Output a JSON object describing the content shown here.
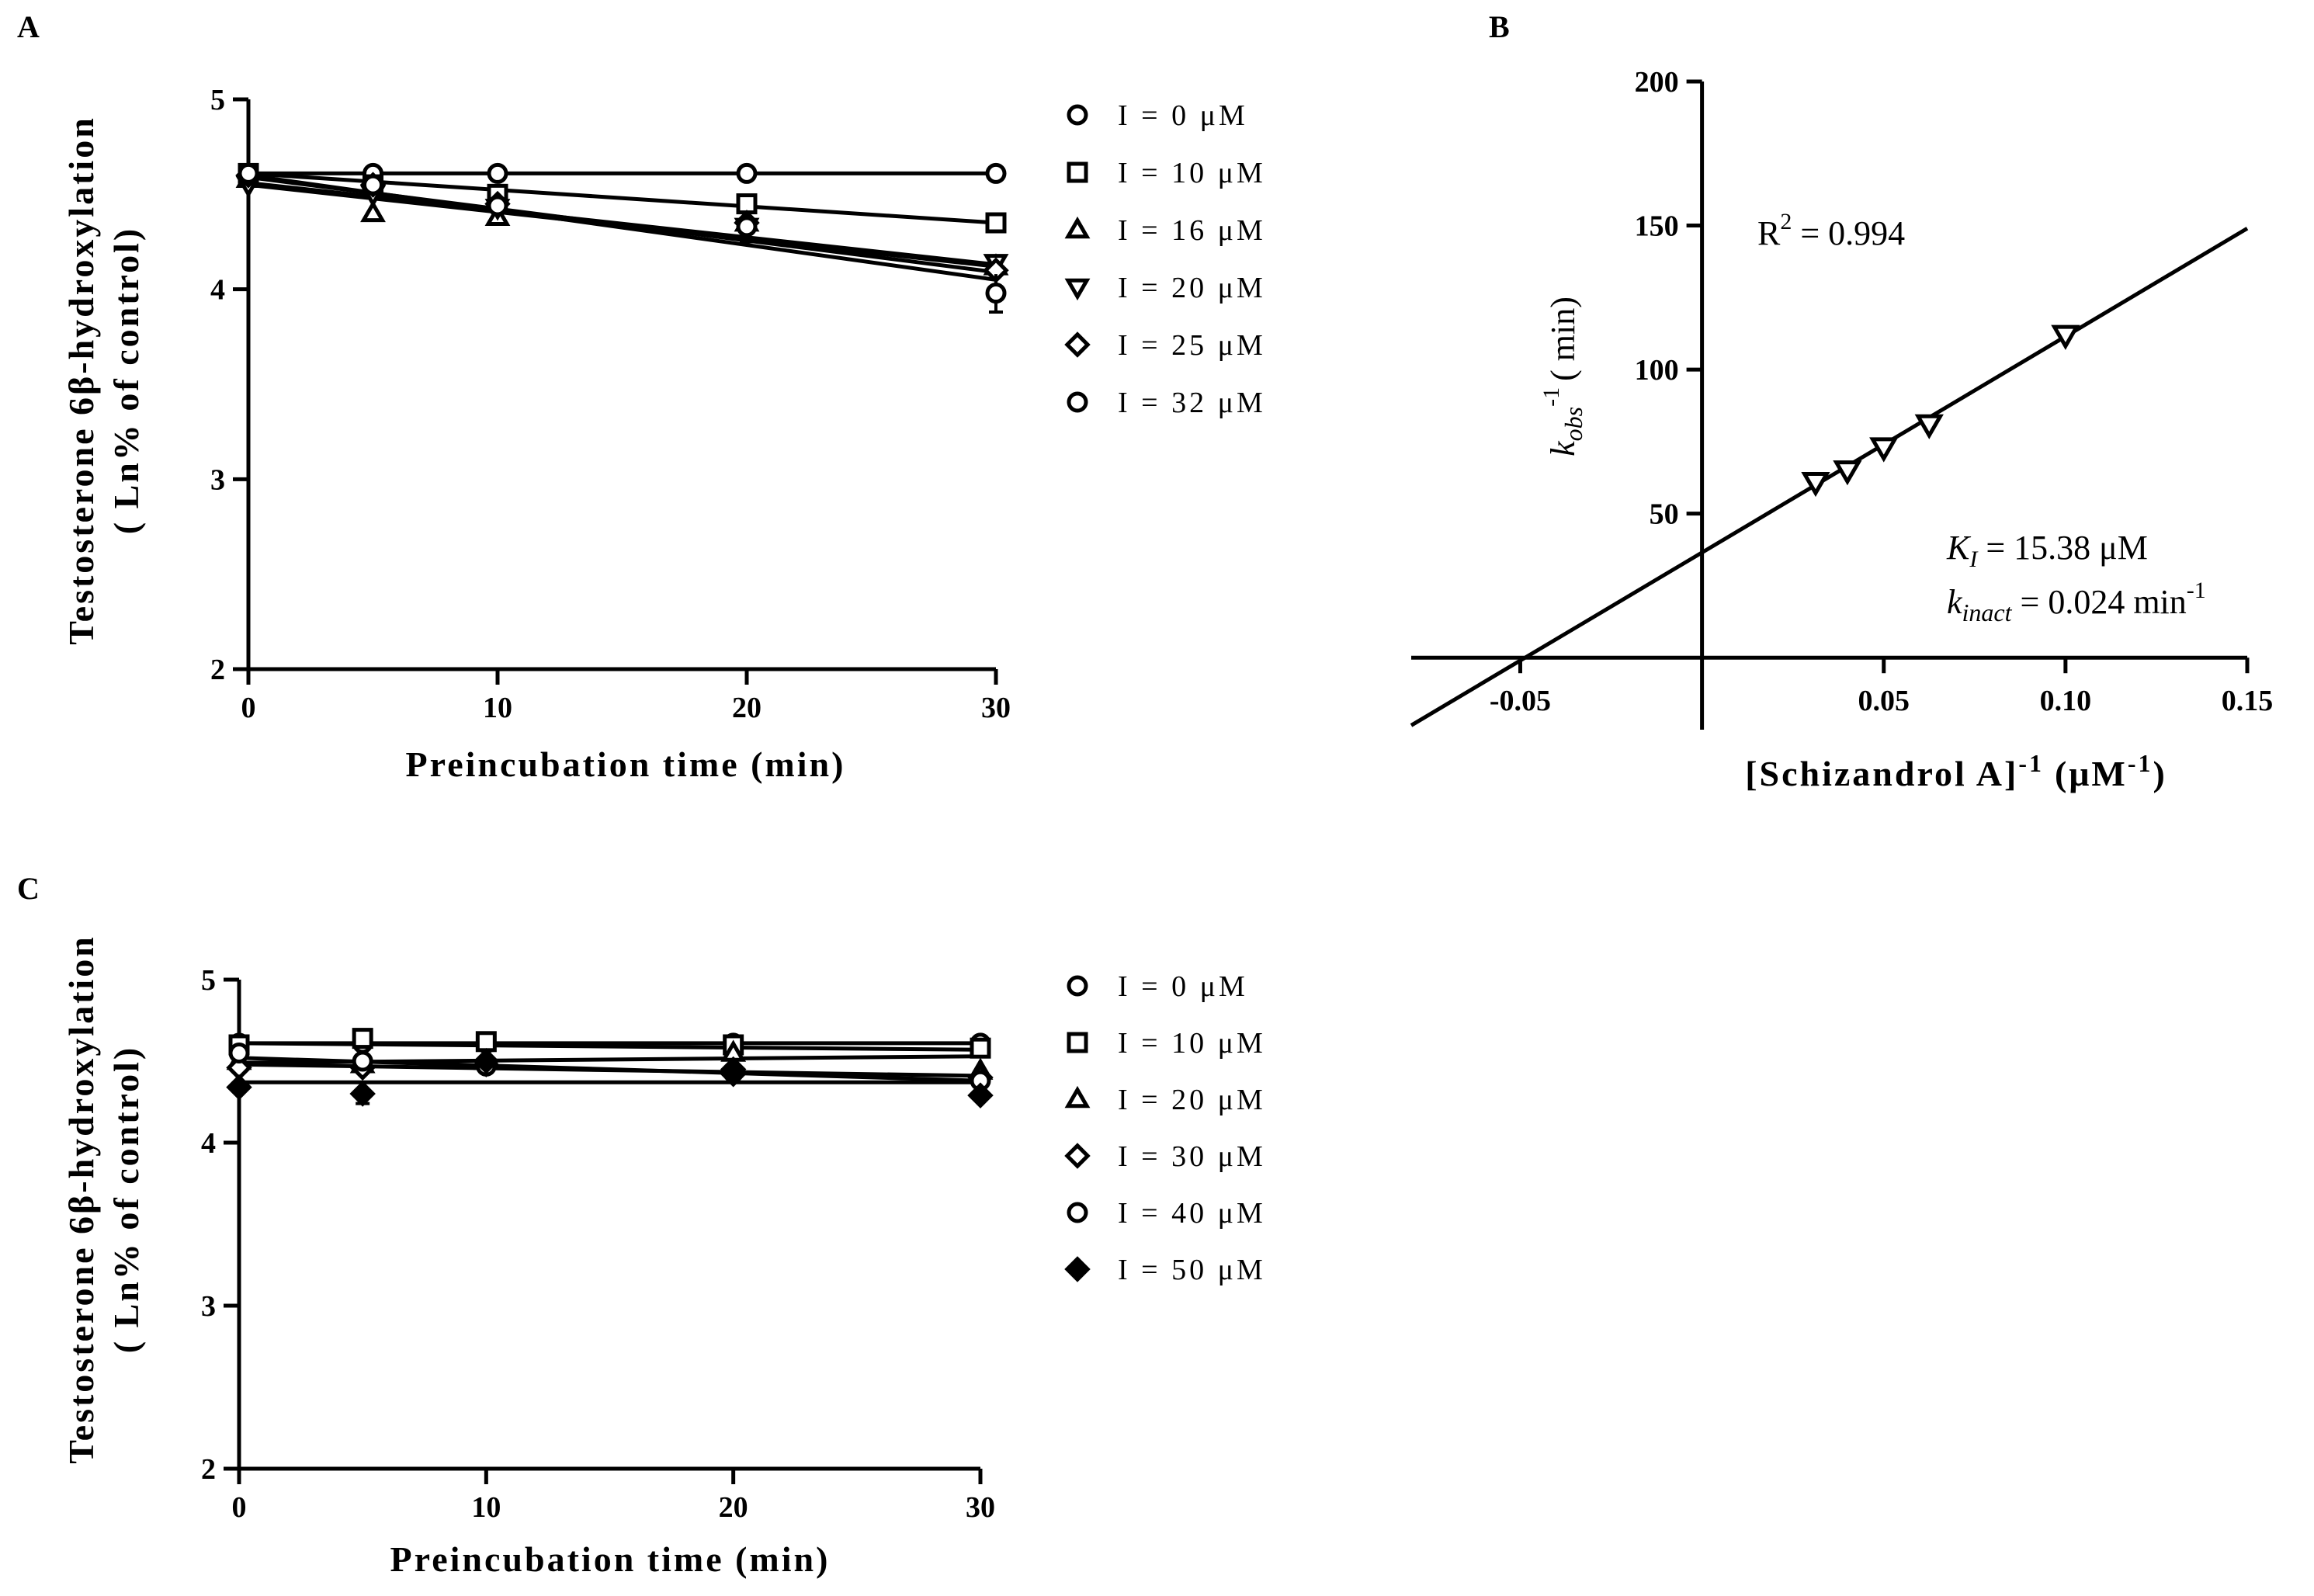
{
  "figure": {
    "panel_labels": [
      "A",
      "B",
      "C"
    ]
  },
  "chart_data": [
    {
      "panel": "A",
      "type": "line",
      "title": "",
      "xlabel": "Preincubation time (min)",
      "ylabel_line1": "Testosterone 6β-hydroxylation",
      "ylabel_line2": "( Ln% of control)",
      "xlim": [
        0,
        30
      ],
      "ylim": [
        2,
        5
      ],
      "xticks": [
        "0",
        "10",
        "20",
        "30"
      ],
      "yticks": [
        "2",
        "3",
        "4",
        "5"
      ],
      "x": [
        0,
        5,
        10,
        20,
        30
      ],
      "series": [
        {
          "name": "I = 0 μM",
          "marker": "circle-open",
          "values": [
            4.61,
            4.61,
            4.61,
            4.61,
            4.61
          ],
          "fit": [
            4.61,
            4.61
          ]
        },
        {
          "name": "I = 10 μM",
          "marker": "square-open",
          "values": [
            4.61,
            4.55,
            4.5,
            4.45,
            4.35
          ],
          "fit": [
            4.61,
            4.35
          ]
        },
        {
          "name": "I = 16 μM",
          "marker": "triangle-open",
          "values": [
            4.58,
            4.4,
            4.38,
            4.35,
            4.12
          ],
          "fit": [
            4.55,
            4.12
          ]
        },
        {
          "name": "I = 20 μM",
          "marker": "tri-down-open",
          "values": [
            4.55,
            4.5,
            4.43,
            4.33,
            4.14
          ],
          "fit": [
            4.56,
            4.13
          ]
        },
        {
          "name": "I = 25 μM",
          "marker": "diamond-open",
          "values": [
            4.6,
            4.55,
            4.45,
            4.35,
            4.1
          ],
          "fit": [
            4.59,
            4.09
          ]
        },
        {
          "name": "I = 32 μM",
          "marker": "circle-open",
          "values": [
            4.61,
            4.55,
            4.44,
            4.33,
            3.98
          ],
          "fit": [
            4.6,
            4.05
          ],
          "error": [
            0,
            0,
            0,
            0.08,
            0.1
          ]
        }
      ]
    },
    {
      "panel": "B",
      "type": "scatter",
      "xlabel_main": "[Schizandrol A]",
      "xlabel_exp": "-1",
      "xlabel_unit": "(μM",
      "xlabel_unit_exp": "-1",
      "xlabel_close": ")",
      "ylabel_k": "k",
      "ylabel_sub": "obs",
      "ylabel_exp": "-1",
      "ylabel_unit": "( min)",
      "xlim": [
        -0.08,
        0.15
      ],
      "ylim": [
        -25,
        200
      ],
      "xticks": [
        "-0.05",
        "0.05",
        "0.10",
        "0.15"
      ],
      "xtick_values": [
        -0.05,
        0.05,
        0.1,
        0.15
      ],
      "yticks": [
        "50",
        "100",
        "150",
        "200"
      ],
      "ytick_values": [
        50,
        100,
        150,
        200
      ],
      "points": {
        "x": [
          0.03125,
          0.04,
          0.05,
          0.0625,
          0.1
        ],
        "y": [
          61,
          65,
          73,
          81,
          112
        ]
      },
      "fit_line": {
        "slope": 750,
        "intercept": 36.5,
        "x_range": [
          -0.08,
          0.15
        ]
      },
      "r2_label": "R",
      "r2_exp": "2",
      "r2_value": " = 0.994",
      "ki_label": "K",
      "ki_sub": "I",
      "ki_value": " = 15.38 μM",
      "kinact_label": "k",
      "kinact_sub": "inact",
      "kinact_value": " = 0.024 min",
      "kinact_exp": "-1"
    },
    {
      "panel": "C",
      "type": "line",
      "title": "",
      "xlabel": "Preincubation time (min)",
      "ylabel_line1": "Testosterone 6β-hydroxylation",
      "ylabel_line2": "( Ln% of control)",
      "xlim": [
        0,
        30
      ],
      "ylim": [
        2,
        5
      ],
      "xticks": [
        "0",
        "10",
        "20",
        "30"
      ],
      "yticks": [
        "2",
        "3",
        "4",
        "5"
      ],
      "x": [
        0,
        5,
        10,
        20,
        30
      ],
      "series": [
        {
          "name": "I = 0 μM",
          "marker": "circle-open",
          "values": [
            4.61,
            4.61,
            4.61,
            4.61,
            4.61
          ],
          "fit": [
            4.61,
            4.61
          ]
        },
        {
          "name": "I = 10 μM",
          "marker": "square-open",
          "values": [
            4.6,
            4.64,
            4.62,
            4.6,
            4.58
          ],
          "fit": [
            4.61,
            4.57
          ]
        },
        {
          "name": "I = 20 μM",
          "marker": "triangle-open",
          "values": [
            4.5,
            4.48,
            4.5,
            4.55,
            4.44
          ],
          "fit": [
            4.49,
            4.53
          ]
        },
        {
          "name": "I = 30 μM",
          "marker": "diamond-open",
          "values": [
            4.46,
            4.46,
            4.48,
            4.45,
            4.4
          ],
          "fit": [
            4.48,
            4.41
          ]
        },
        {
          "name": "I = 40 μM",
          "marker": "circle-open",
          "values": [
            4.55,
            4.5,
            4.47,
            4.43,
            4.38
          ],
          "fit": [
            4.52,
            4.38
          ]
        },
        {
          "name": "I = 50 μM",
          "marker": "diamond-filled",
          "values": [
            4.34,
            4.3,
            4.5,
            4.42,
            4.29
          ],
          "fit": [
            4.37,
            4.37
          ],
          "error": [
            0,
            0.06,
            0,
            0,
            0
          ]
        }
      ]
    }
  ]
}
